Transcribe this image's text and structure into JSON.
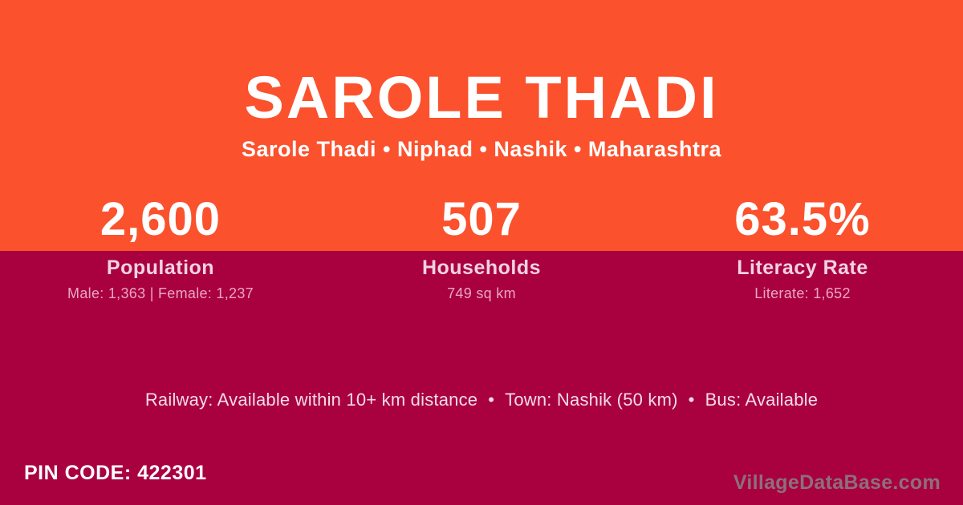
{
  "colors": {
    "orange": "#fb512d",
    "magenta": "#a90040",
    "label_pink": "#f2d3e2",
    "detail_pink": "#eba6c3",
    "info_pink": "#f3dce8",
    "watermark_gray": "#888888"
  },
  "header": {
    "title": "SAROLE THADI",
    "breadcrumb": "Sarole Thadi • Niphad • Nashik • Maharashtra"
  },
  "stats": [
    {
      "value": "2,600",
      "label": "Population",
      "detail": "Male: 1,363 | Female: 1,237"
    },
    {
      "value": "507",
      "label": "Households",
      "detail": "749 sq km"
    },
    {
      "value": "63.5%",
      "label": "Literacy Rate",
      "detail": "Literate: 1,652"
    }
  ],
  "info": {
    "separator": "•",
    "items": [
      "Railway: Available within 10+ km distance",
      "Town: Nashik (50 km)",
      "Bus: Available"
    ]
  },
  "footer": {
    "pin_code": "PIN CODE: 422301",
    "watermark": "VillageDataBase.com"
  }
}
